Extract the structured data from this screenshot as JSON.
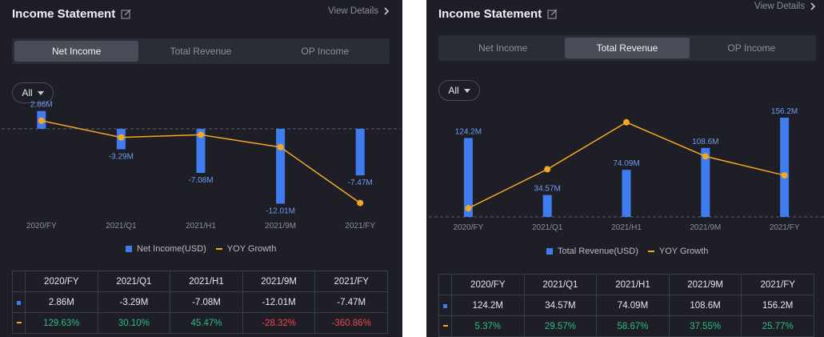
{
  "left": {
    "title": "Income Statement",
    "view_details": "View Details",
    "tabs": [
      {
        "label": "Net Income",
        "active": true
      },
      {
        "label": "Total Revenue",
        "active": false
      },
      {
        "label": "OP Income",
        "active": false
      }
    ],
    "filter": {
      "selected": "All"
    },
    "legend": {
      "bar": "Net Income(USD)",
      "line": "YOY Growth"
    },
    "table": {
      "headers": [
        "2020/FY",
        "2021/Q1",
        "2021/H1",
        "2021/9M",
        "2021/FY"
      ],
      "values": [
        "2.86M",
        "-3.29M",
        "-7.08M",
        "-12.01M",
        "-7.47M"
      ],
      "growth": [
        "129.63%",
        "30.10%",
        "45.47%",
        "-28.32%",
        "-360.86%"
      ]
    }
  },
  "right": {
    "title": "Income Statement",
    "view_details": "View Details",
    "tabs": [
      {
        "label": "Net Income",
        "active": false
      },
      {
        "label": "Total Revenue",
        "active": true
      },
      {
        "label": "OP Income",
        "active": false
      }
    ],
    "filter": {
      "selected": "All"
    },
    "legend": {
      "bar": "Total Revenue(USD)",
      "line": "YOY Growth"
    },
    "table": {
      "headers": [
        "2020/FY",
        "2021/Q1",
        "2021/H1",
        "2021/9M",
        "2021/FY"
      ],
      "values": [
        "124.2M",
        "34.57M",
        "74.09M",
        "108.6M",
        "156.2M"
      ],
      "growth": [
        "5.37%",
        "29.57%",
        "58.67%",
        "37.55%",
        "25.77%"
      ]
    }
  },
  "colors": {
    "bar": "#3f7cf0",
    "line": "#f5a623",
    "positive": "#2ebd85",
    "negative": "#f0464e"
  },
  "chart_data": [
    {
      "type": "bar",
      "categories": [
        "2020/FY",
        "2021/Q1",
        "2021/H1",
        "2021/9M",
        "2021/FY"
      ],
      "series": [
        {
          "name": "Net Income(USD)",
          "values": [
            2.86,
            -3.29,
            -7.08,
            -12.01,
            -7.47
          ],
          "labels": [
            "2.86M",
            "-3.29M",
            "-7.08M",
            "-12.01M",
            "-7.47M"
          ]
        },
        {
          "name": "YOY Growth",
          "type": "line",
          "values": [
            129.63,
            30.1,
            45.47,
            -28.32,
            -360.86
          ]
        }
      ],
      "ylim": [
        -13.5,
        3.2
      ],
      "growth_lim": [
        -420,
        200
      ]
    },
    {
      "type": "bar",
      "categories": [
        "2020/FY",
        "2021/Q1",
        "2021/H1",
        "2021/9M",
        "2021/FY"
      ],
      "series": [
        {
          "name": "Total Revenue(USD)",
          "values": [
            124.2,
            34.57,
            74.09,
            108.6,
            156.2
          ],
          "labels": [
            "124.2M",
            "34.57M",
            "74.09M",
            "108.6M",
            "156.2M"
          ]
        },
        {
          "name": "YOY Growth",
          "type": "line",
          "values": [
            5.37,
            29.57,
            58.67,
            37.55,
            25.77
          ]
        }
      ],
      "ylim": [
        0,
        165
      ],
      "growth_lim": [
        0,
        65
      ]
    }
  ]
}
